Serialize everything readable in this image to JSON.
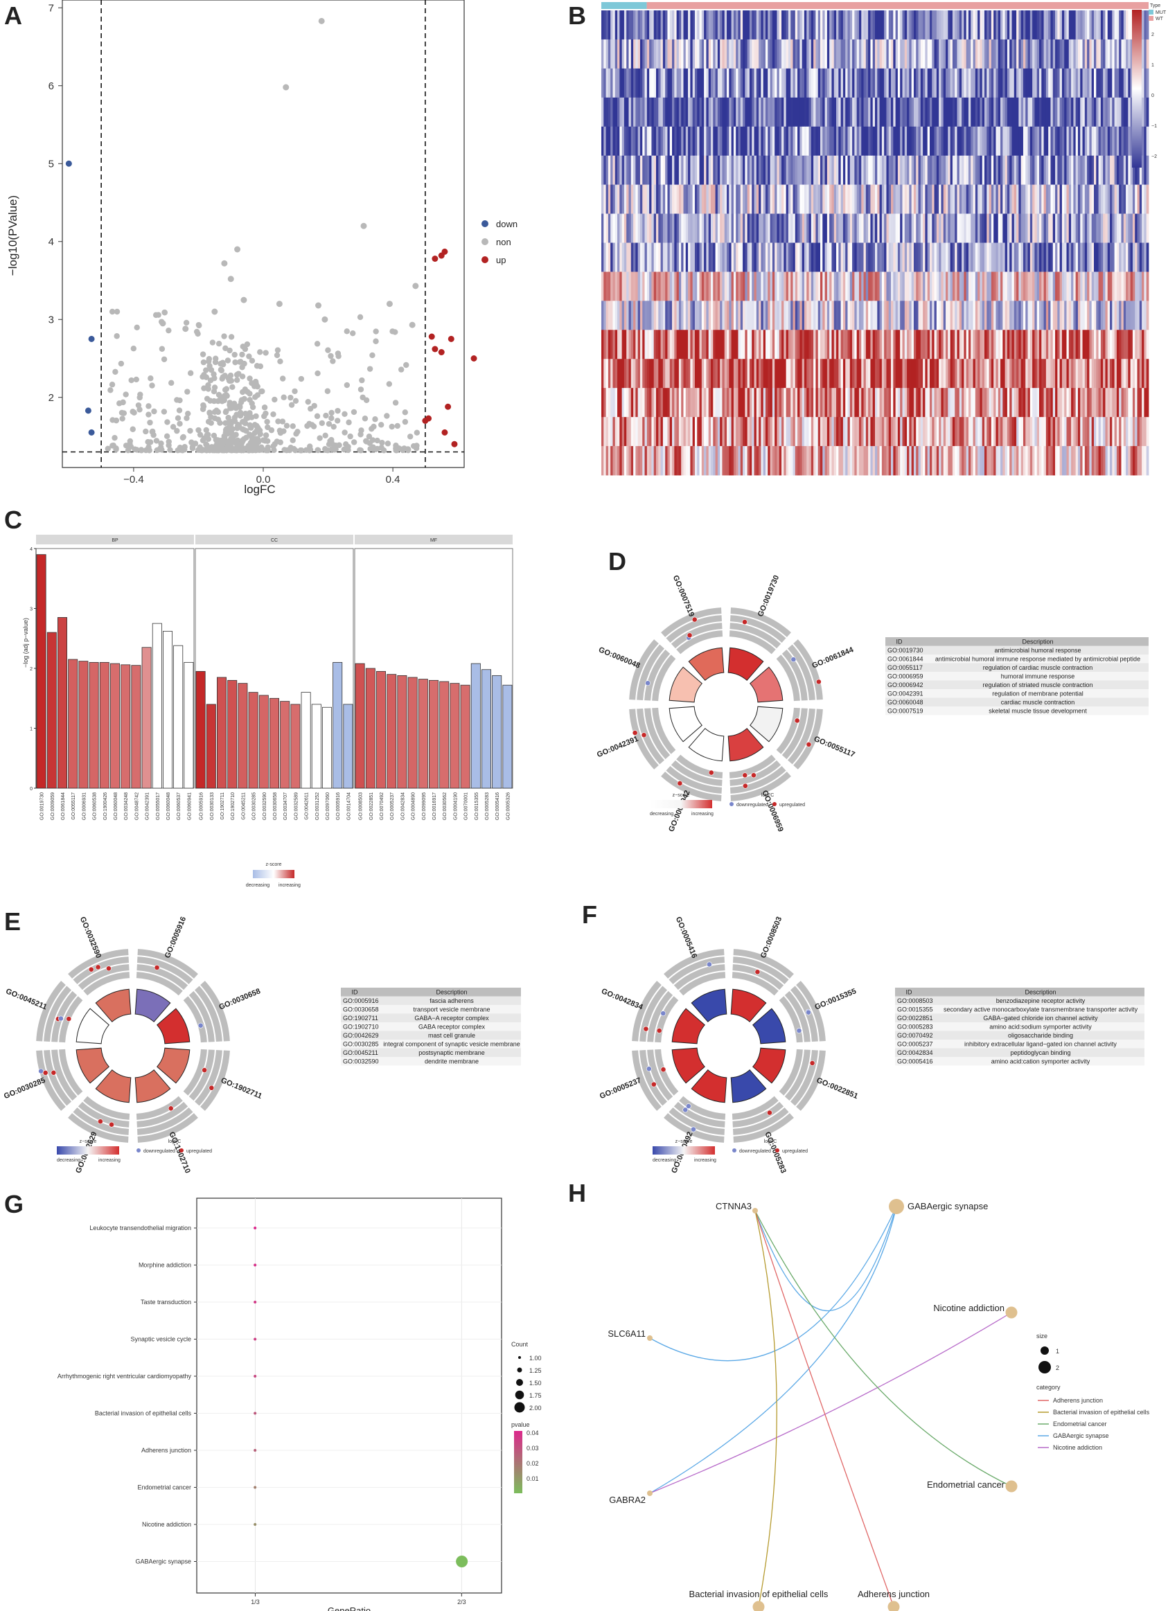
{
  "panels": {
    "A": "A",
    "B": "B",
    "C": "C",
    "D": "D",
    "E": "E",
    "F": "F",
    "G": "G",
    "H": "H"
  },
  "volcano": {
    "xlabel": "logFC",
    "ylabel": "−log10(PValue)",
    "xticks": [
      "−0.4",
      "0.0",
      "0.4"
    ],
    "yticks": [
      "2",
      "3",
      "4",
      "5",
      "6",
      "7"
    ],
    "legend": [
      "down",
      "non",
      "up"
    ],
    "colors": {
      "down": "#3b5a9a",
      "non": "#b8b8b8",
      "up": "#b22222"
    }
  },
  "heatmap": {
    "legend_title": "Type",
    "types": [
      "MUT",
      "WT"
    ],
    "type_colors": [
      "#7ec8d8",
      "#e8a0a0"
    ],
    "scale": [
      "2",
      "1",
      "0",
      "−1",
      "−2"
    ]
  },
  "barplot": {
    "facets": [
      "BP",
      "CC",
      "MF"
    ],
    "ylabel": "−log (adj p−value)",
    "yticks": [
      "0",
      "1",
      "2",
      "3",
      "4"
    ],
    "legend_title": "z-score",
    "legend_low": "decreasing",
    "legend_high": "increasing"
  },
  "goplots": {
    "zscore_title": "z−score",
    "logfc_title": "logFC",
    "decreasing": "decreasing",
    "increasing": "increasing",
    "down": "downregulated",
    "up": "upregulated",
    "id_header": "ID",
    "desc_header": "Description"
  },
  "dotplot": {
    "xlabel": "GeneRatio",
    "xticks": [
      "1/3",
      "2/3"
    ],
    "count_title": "Count",
    "count_values": [
      "1.00",
      "1.25",
      "1.50",
      "1.75",
      "2.00"
    ],
    "pvalue_title": "pvalue",
    "pvalue_ticks": [
      "0.04",
      "0.03",
      "0.02",
      "0.01"
    ]
  },
  "network": {
    "genes": [
      "CTNNA3",
      "SLC6A11",
      "GABRA2"
    ],
    "size_title": "size",
    "size_values": [
      "1",
      "2"
    ],
    "category_title": "category",
    "categories": [
      "Adherens junction",
      "Bacterial invasion of epithelial cells",
      "Endometrial cancer",
      "GABAergic synapse",
      "Nicotine addiction"
    ],
    "category_colors": [
      "#e06666",
      "#b59a2e",
      "#6aaa6a",
      "#5aa8e6",
      "#b76ac9"
    ]
  },
  "chart_data": [
    {
      "type": "scatter",
      "title": "",
      "xlabel": "logFC",
      "ylabel": "−log10(PValue)",
      "xlim": [
        -0.62,
        0.62
      ],
      "ylim": [
        1.1,
        7.1
      ],
      "thresholds": {
        "logFC": [
          -0.5,
          0.5
        ],
        "neglog10p": 1.3
      },
      "series": [
        {
          "name": "down",
          "points": [
            [
              -0.6,
              5.0
            ],
            [
              -0.53,
              2.75
            ],
            [
              -0.54,
              1.83
            ],
            [
              -0.53,
              1.55
            ]
          ]
        },
        {
          "name": "up",
          "points": [
            [
              0.56,
              3.87
            ],
            [
              0.55,
              3.82
            ],
            [
              0.53,
              3.78
            ],
            [
              0.52,
              2.78
            ],
            [
              0.53,
              2.62
            ],
            [
              0.55,
              2.58
            ],
            [
              0.58,
              2.75
            ],
            [
              0.65,
              2.5
            ],
            [
              0.5,
              1.7
            ],
            [
              0.51,
              1.73
            ],
            [
              0.57,
              1.88
            ],
            [
              0.56,
              1.55
            ],
            [
              0.59,
              1.4
            ]
          ]
        },
        {
          "name": "non",
          "points": [
            [
              0.18,
              6.83
            ],
            [
              0.07,
              5.98
            ],
            [
              0.31,
              4.2
            ],
            [
              -0.08,
              3.9
            ],
            [
              -0.12,
              3.72
            ],
            [
              0.47,
              3.43
            ],
            [
              -0.1,
              3.52
            ],
            [
              0.05,
              3.2
            ],
            [
              0.17,
              3.18
            ],
            [
              -0.15,
              3.1
            ],
            [
              -0.06,
              3.25
            ],
            [
              0.19,
              3.0
            ],
            [
              0.39,
              3.2
            ],
            [
              -0.31,
              2.95
            ],
            [
              -0.24,
              2.88
            ],
            [
              0.46,
              2.93
            ]
          ]
        }
      ]
    },
    {
      "type": "heatmap",
      "rows": 16,
      "columns": 240,
      "annotation": [
        "MUT",
        "WT"
      ],
      "scale": [
        -2,
        2
      ]
    },
    {
      "type": "bar",
      "facets": [
        {
          "name": "BP",
          "categories": [
            "GO:0019730",
            "GO:0009059",
            "GO:0061844",
            "GO:0055117",
            "GO:0006931",
            "GO:0060538",
            "GO:1900426",
            "GO:0060048",
            "GO:0034248",
            "GO:0048742",
            "GO:0042391",
            "GO:0055017",
            "GO:0060048b",
            "GO:0060537",
            "GO:0060941"
          ],
          "values": [
            3.9,
            2.6,
            2.85,
            2.15,
            2.12,
            2.1,
            2.1,
            2.08,
            2.06,
            2.05,
            2.35,
            2.75,
            2.62,
            2.38,
            2.1
          ],
          "z": [
            1.0,
            0.9,
            0.8,
            0.6,
            0.6,
            0.55,
            0.55,
            0.5,
            0.5,
            0.5,
            0.25,
            0,
            0,
            0,
            0
          ]
        },
        {
          "name": "CC",
          "categories": [
            "GO:0005916",
            "GO:0030133",
            "GO:1902711",
            "GO:1902710",
            "GO:0045211",
            "GO:0030285",
            "GO:0032590",
            "GO:0030658",
            "GO:0034707",
            "GO:0032589",
            "GO:0042611",
            "GO:0031252",
            "GO:0097060",
            "GO:0005916b",
            "GO:0014704"
          ],
          "values": [
            1.95,
            1.4,
            1.85,
            1.8,
            1.75,
            1.6,
            1.55,
            1.5,
            1.45,
            1.4,
            1.6,
            1.4,
            1.35,
            2.1,
            1.4
          ],
          "z": [
            1.0,
            0.9,
            0.7,
            0.7,
            0.6,
            0.6,
            0.55,
            0.55,
            0.5,
            0.5,
            0,
            0,
            0,
            -0.5,
            -0.5
          ]
        },
        {
          "name": "MF",
          "categories": [
            "GO:0008503",
            "GO:0022851",
            "GO:0070492",
            "GO:0005237",
            "GO:0042834",
            "GO:0004890",
            "GO:0099095",
            "GO:0016917",
            "GO:0030562",
            "GO:0004190",
            "GO:0070001",
            "GO:0015355",
            "GO:0005283",
            "GO:0005416",
            "GO:0005326"
          ],
          "values": [
            2.08,
            2.0,
            1.95,
            1.9,
            1.88,
            1.85,
            1.82,
            1.8,
            1.78,
            1.75,
            1.72,
            2.08,
            1.98,
            1.88,
            1.72
          ],
          "z": [
            0.7,
            0.65,
            0.6,
            0.6,
            0.55,
            0.55,
            0.5,
            0.5,
            0.5,
            0.5,
            0.5,
            -0.5,
            -0.5,
            -0.5,
            -0.5
          ]
        }
      ]
    },
    {
      "type": "table",
      "name": "D",
      "terms": [
        {
          "id": "GO:0019730",
          "description": "antimicrobial humoral response"
        },
        {
          "id": "GO:0061844",
          "description": "antimicrobial humoral immune response mediated by antimicrobial peptide"
        },
        {
          "id": "GO:0055117",
          "description": "regulation of cardiac muscle contraction"
        },
        {
          "id": "GO:0006959",
          "description": "humoral immune response"
        },
        {
          "id": "GO:0006942",
          "description": "regulation of striated muscle contraction"
        },
        {
          "id": "GO:0042391",
          "description": "regulation of membrane potential"
        },
        {
          "id": "GO:0060048",
          "description": "cardiac muscle contraction"
        },
        {
          "id": "GO:0007519",
          "description": "skeletal muscle tissue development"
        }
      ],
      "ring_labels": [
        "GO:0019730",
        "GO:0061844",
        "GO:0055117",
        "GO:0006959",
        "GO:0006942",
        "GO:0042391",
        "GO:0060048",
        "GO:0007519"
      ],
      "inner_colors": [
        "#d32f2f",
        "#e57373",
        "#f2f2f2",
        "#d94040",
        "#ffffff",
        "#ffffff",
        "#f7c0b0",
        "#e06a5a"
      ]
    },
    {
      "type": "table",
      "name": "E",
      "terms": [
        {
          "id": "GO:0005916",
          "description": "fascia adherens"
        },
        {
          "id": "GO:0030658",
          "description": "transport vesicle membrane"
        },
        {
          "id": "GO:1902711",
          "description": "GABA−A receptor complex"
        },
        {
          "id": "GO:1902710",
          "description": "GABA receptor complex"
        },
        {
          "id": "GO:0042629",
          "description": "mast cell granule"
        },
        {
          "id": "GO:0030285",
          "description": "integral component of synaptic vesicle membrane"
        },
        {
          "id": "GO:0045211",
          "description": "postsynaptic membrane"
        },
        {
          "id": "GO:0032590",
          "description": "dendrite membrane"
        }
      ],
      "ring_labels": [
        "GO:0005916",
        "GO:0030658",
        "GO:1902711",
        "GO:1902710",
        "GO:0042629",
        "GO:0030285",
        "GO:0045211",
        "GO:0032590"
      ],
      "inner_colors": [
        "#7b6fb8",
        "#d32f2f",
        "#d9705f",
        "#d9705f",
        "#d9705f",
        "#d9705f",
        "#ffffff",
        "#d9705f"
      ]
    },
    {
      "type": "table",
      "name": "F",
      "terms": [
        {
          "id": "GO:0008503",
          "description": "benzodiazepine receptor activity"
        },
        {
          "id": "GO:0015355",
          "description": "secondary active monocarboxylate transmembrane transporter activity"
        },
        {
          "id": "GO:0022851",
          "description": "GABA−gated chloride ion channel activity"
        },
        {
          "id": "GO:0005283",
          "description": "amino acid:sodium symporter activity"
        },
        {
          "id": "GO:0070492",
          "description": "oligosaccharide binding"
        },
        {
          "id": "GO:0005237",
          "description": "inhibitory extracellular ligand−gated ion channel activity"
        },
        {
          "id": "GO:0042834",
          "description": "peptidoglycan binding"
        },
        {
          "id": "GO:0005416",
          "description": "amino acid:cation symporter activity"
        }
      ],
      "ring_labels": [
        "GO:0008503",
        "GO:0015355",
        "GO:0022851",
        "GO:0005283",
        "GO:0070492",
        "GO:0005237",
        "GO:0042834",
        "GO:0005416"
      ],
      "inner_colors": [
        "#d32f2f",
        "#3949ab",
        "#d32f2f",
        "#3949ab",
        "#d32f2f",
        "#d32f2f",
        "#d32f2f",
        "#3949ab"
      ]
    },
    {
      "type": "scatter",
      "name": "G",
      "xlabel": "GeneRatio",
      "categories": [
        "Leukocyte transendothelial migration",
        "Morphine addiction",
        "Taste transduction",
        "Synaptic vesicle cycle",
        "Arrhythmogenic right ventricular cardiomyopathy",
        "Bacterial invasion of epithelial cells",
        "Adherens junction",
        "Endometrial cancer",
        "Nicotine addiction",
        "GABAergic synapse"
      ],
      "gene_ratio": [
        0.333,
        0.333,
        0.333,
        0.333,
        0.333,
        0.333,
        0.333,
        0.333,
        0.333,
        0.667
      ],
      "count": [
        1,
        1,
        1,
        1,
        1,
        1,
        1,
        1,
        1,
        2
      ],
      "pvalue": [
        0.042,
        0.04,
        0.038,
        0.036,
        0.034,
        0.03,
        0.028,
        0.02,
        0.016,
        0.004
      ]
    }
  ]
}
